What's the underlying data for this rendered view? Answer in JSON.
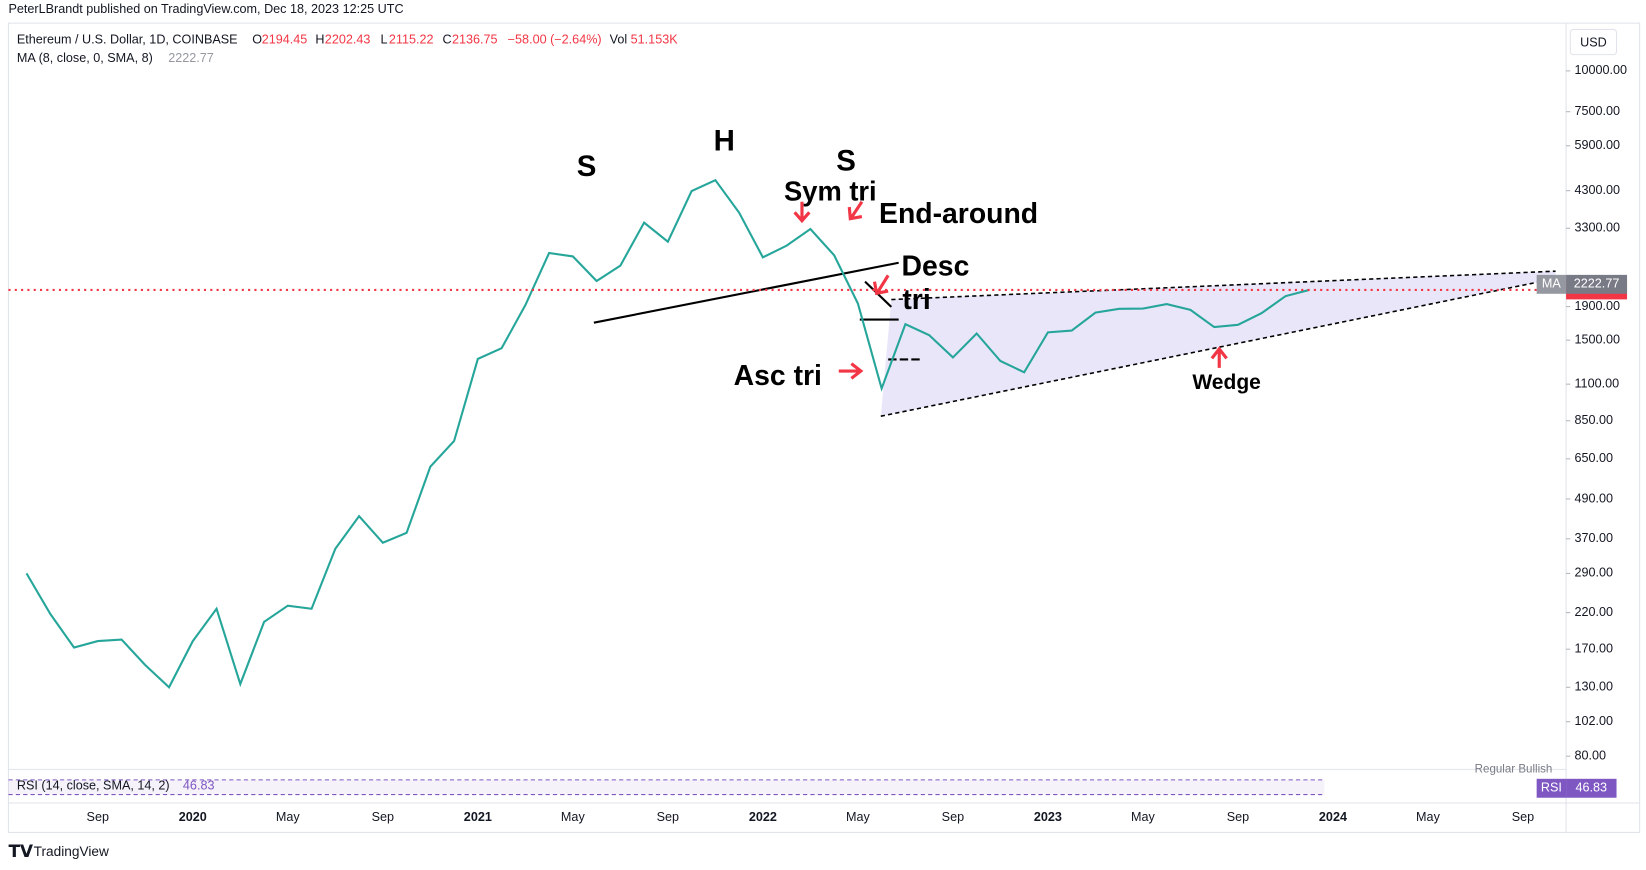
{
  "header": {
    "author_line": "PeterLBrandt published on TradingView.com, Dec 18, 2023 12:25 UTC"
  },
  "symbol": {
    "name": "Ethereum / U.S. Dollar, 1D, COINBASE",
    "o_label": "O",
    "o": 2194.45,
    "h_label": "H",
    "h": 2202.43,
    "l_label": "L",
    "l": 2115.22,
    "c_label": "C",
    "c": 2136.75,
    "change": "−58.00 (−2.64%)",
    "vol_label": "Vol",
    "vol": "51.153K"
  },
  "ma": {
    "label": "MA (8, close, 0, SMA, 8)",
    "value": 2222.77,
    "badge": "MA"
  },
  "rsi": {
    "label": "RSI (14, close, SMA, 14, 2)",
    "value": 46.83,
    "badge": "RSI",
    "note": "Regular Bullish"
  },
  "currency": "USD",
  "brand": "TradingView",
  "annotations": [
    "S",
    "H",
    "S",
    "Sym tri",
    "End-around",
    "Desc",
    "tri",
    "Asc tri",
    "Wedge"
  ],
  "chart_data": {
    "type": "line",
    "log_scale": true,
    "color": "#26a69a",
    "last_price": 2136.75,
    "last_price_color": "#f23645",
    "categories": [
      null,
      null,
      null,
      "Sep",
      null,
      null,
      null,
      "2020",
      null,
      null,
      null,
      "May",
      null,
      null,
      null,
      "Sep",
      null,
      null,
      null,
      "2021",
      null,
      null,
      null,
      "May",
      null,
      null,
      null,
      "Sep",
      null,
      null,
      null,
      "2022",
      null,
      null,
      null,
      "May",
      null,
      null,
      null,
      "Sep",
      null,
      null,
      null,
      "2023",
      null,
      null,
      null,
      "May",
      null,
      null,
      null,
      "Sep",
      null,
      null,
      null,
      "2024",
      null,
      null,
      null,
      "May",
      null,
      null,
      null,
      "Sep",
      null,
      null
    ],
    "values": [
      290,
      218,
      172,
      180,
      182,
      152,
      130,
      180,
      226,
      133,
      206,
      231,
      226,
      345,
      434,
      360,
      386,
      615,
      737,
      1314,
      1417,
      1919,
      2772,
      2706,
      2275,
      2536,
      3433,
      3001,
      4288,
      4631,
      3683,
      2688,
      2919,
      3282,
      2728,
      1942,
      1067,
      1679,
      1554,
      1328,
      1572,
      1295,
      1196,
      1585,
      1605,
      1821,
      1870,
      1874,
      1934,
      1857,
      1645,
      1671,
      1815,
      2045,
      2136.75,
      null,
      null,
      null,
      null,
      null,
      null,
      null,
      null,
      null,
      null,
      null
    ],
    "ylim": [
      74,
      14000
    ],
    "yticks": [
      {
        "value": 10000,
        "label": "10000.00"
      },
      {
        "value": 7500,
        "label": "7500.00"
      },
      {
        "value": 5900,
        "label": "5900.00"
      },
      {
        "value": 4300,
        "label": "4300.00"
      },
      {
        "value": 3300,
        "label": "3300.00"
      },
      {
        "value": 1900,
        "label": "1900.00"
      },
      {
        "value": 1500,
        "label": "1500.00"
      },
      {
        "value": 1100,
        "label": "1100.00"
      },
      {
        "value": 850,
        "label": "850.00"
      },
      {
        "value": 650,
        "label": "650.00"
      },
      {
        "value": 490,
        "label": "490.00"
      },
      {
        "value": 370,
        "label": "370.00"
      },
      {
        "value": 290,
        "label": "290.00"
      },
      {
        "value": 220,
        "label": "220.00"
      },
      {
        "value": 170,
        "label": "170.00"
      },
      {
        "value": 130,
        "label": "130.00"
      },
      {
        "value": 102,
        "label": "102.00"
      },
      {
        "value": 80,
        "label": "80.00"
      }
    ]
  }
}
